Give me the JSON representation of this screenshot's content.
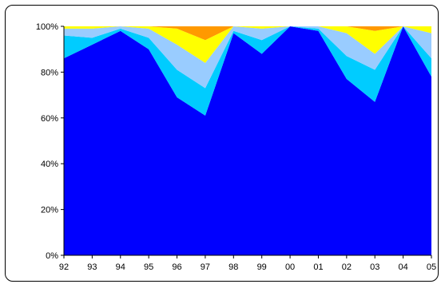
{
  "chart_data": {
    "type": "area",
    "stacked": true,
    "percent": true,
    "categories": [
      "92",
      "93",
      "94",
      "95",
      "96",
      "97",
      "98",
      "99",
      "00",
      "01",
      "02",
      "03",
      "04",
      "05"
    ],
    "ylim": [
      0,
      100
    ],
    "y_ticks": [
      "0%",
      "20%",
      "40%",
      "60%",
      "80%",
      "100%"
    ],
    "grid": false,
    "legend": "none",
    "series": [
      {
        "color": "#0000FF",
        "values": [
          86,
          92,
          98,
          90,
          69,
          61,
          97,
          88,
          100,
          98,
          77,
          67,
          100,
          78
        ]
      },
      {
        "color": "#00CCFF",
        "values": [
          10,
          3,
          1,
          5,
          12,
          12,
          1,
          6,
          0,
          1,
          10,
          14,
          0,
          8
        ]
      },
      {
        "color": "#99CCFF",
        "values": [
          3,
          4,
          1,
          4,
          11,
          11,
          2,
          5,
          0,
          1,
          10,
          7,
          0,
          11
        ]
      },
      {
        "color": "#FFFF00",
        "values": [
          1,
          1,
          0,
          1,
          7,
          10,
          0,
          1,
          0,
          0,
          3,
          10,
          0,
          3
        ]
      },
      {
        "color": "#FF9900",
        "values": [
          0,
          0,
          0,
          0,
          1,
          6,
          0,
          0,
          0,
          0,
          0,
          2,
          0,
          0
        ]
      }
    ]
  }
}
